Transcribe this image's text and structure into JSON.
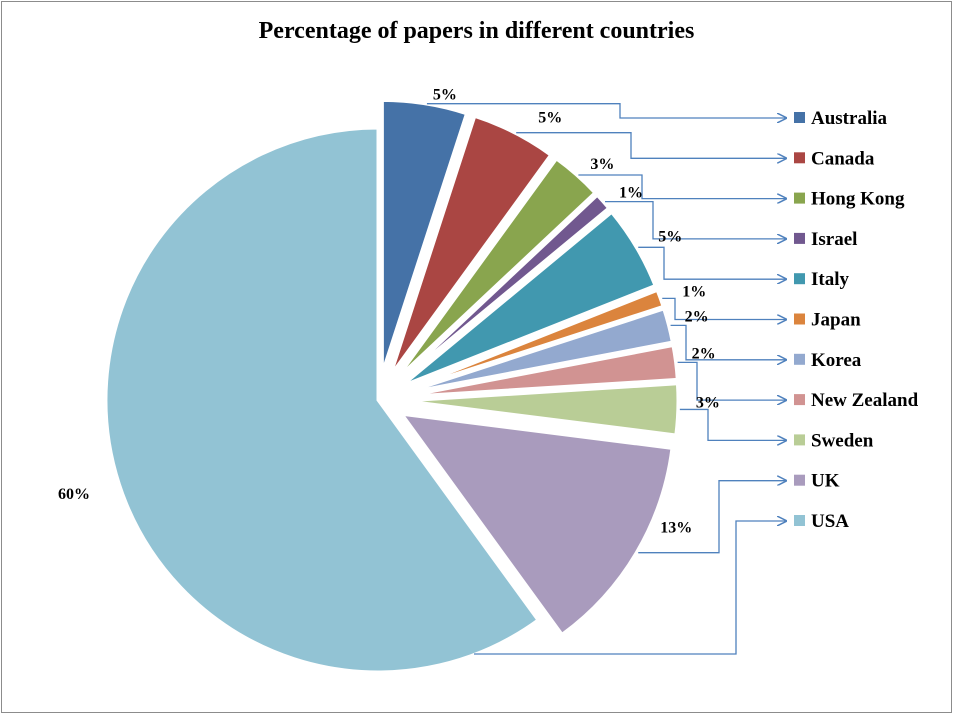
{
  "chart_data": {
    "type": "pie",
    "title": "Percentage of papers in different countries",
    "legend_position": "right",
    "slices": [
      {
        "name": "Australia",
        "value": 5,
        "label": "5%",
        "color": "#4572a7"
      },
      {
        "name": "Canada",
        "value": 5,
        "label": "5%",
        "color": "#aa4643"
      },
      {
        "name": "Hong Kong",
        "value": 3,
        "label": "3%",
        "color": "#89a54e"
      },
      {
        "name": "Israel",
        "value": 1,
        "label": "1%",
        "color": "#71588f"
      },
      {
        "name": "Italy",
        "value": 5,
        "label": "5%",
        "color": "#4198af"
      },
      {
        "name": "Japan",
        "value": 1,
        "label": "1%",
        "color": "#db843d"
      },
      {
        "name": "Korea",
        "value": 2,
        "label": "2%",
        "color": "#93a9cf"
      },
      {
        "name": "New Zealand",
        "value": 2,
        "label": "2%",
        "color": "#d19392"
      },
      {
        "name": "Sweden",
        "value": 3,
        "label": "3%",
        "color": "#b9cd96"
      },
      {
        "name": "UK",
        "value": 13,
        "label": "13%",
        "color": "#a99bbd"
      },
      {
        "name": "USA",
        "value": 60,
        "label": "60%",
        "color": "#92c3d4"
      }
    ]
  },
  "colors": {
    "connector": "#4f81bd",
    "border": "#8c8c8c"
  }
}
